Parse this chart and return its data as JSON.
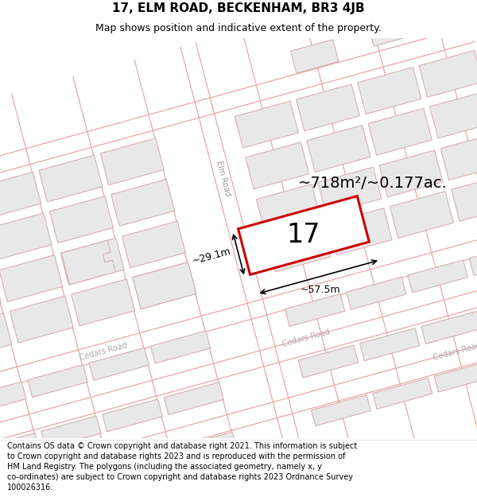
{
  "title_line1": "17, ELM ROAD, BECKENHAM, BR3 4JB",
  "title_line2": "Map shows position and indicative extent of the property.",
  "area_label": "~718m²/~0.177ac.",
  "number_label": "17",
  "width_label": "~57.5m",
  "height_label": "~29.1m",
  "road_label_elm": "Elm Road",
  "road_label_cedars1": "Cedars Road",
  "road_label_cedars2": "Cedars Road",
  "road_label_cedars3": "Cedars Road",
  "map_bg": "#f8f4f4",
  "building_fill": "#e8e8e8",
  "building_stroke": "#d4a8a8",
  "road_stroke": "#e8a8a8",
  "plot_line_color": "#c8c0c0",
  "highlight_fill": "#ffffff",
  "highlight_stroke": "#cc0000",
  "highlight_lw": 2.2,
  "title_fontsize": 11,
  "subtitle_fontsize": 9,
  "footer_fontsize": 7.0,
  "label_fontsize": 14,
  "number_fontsize": 24,
  "road_fontsize": 7,
  "dim_fontsize": 9,
  "map_rotation_deg": 15,
  "footer_lines": [
    "Contains OS data © Crown copyright and database right 2021. This information is subject",
    "to Crown copyright and database rights 2023 and is reproduced with the permission of",
    "HM Land Registry. The polygons (including the associated geometry, namely x, y",
    "co-ordinates) are subject to Crown copyright and database rights 2023 Ordnance Survey",
    "100026316."
  ]
}
